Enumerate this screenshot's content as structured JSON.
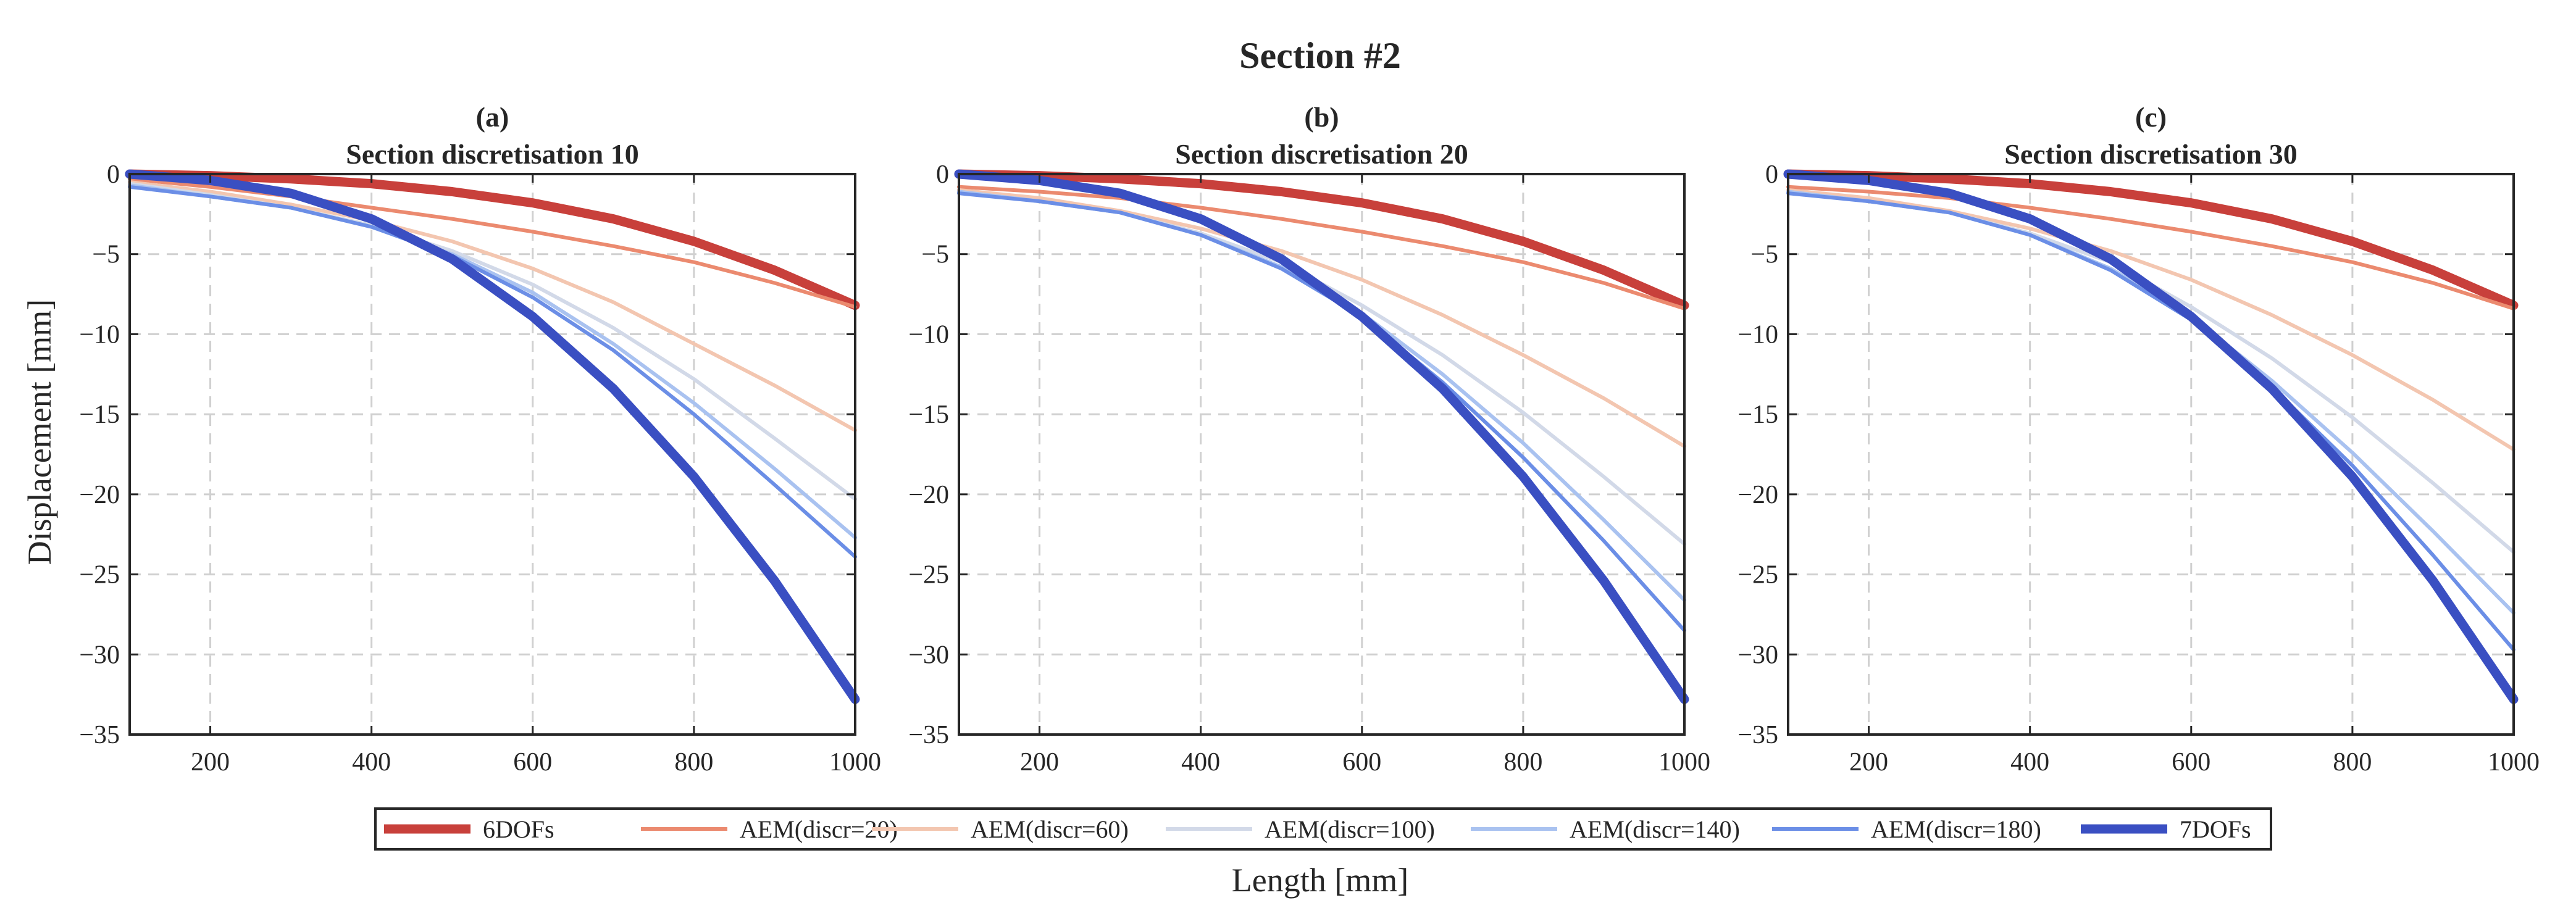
{
  "figure": {
    "suptitle": "Section #2",
    "ylabel": "Displacement [mm]",
    "xlabel": "Length [mm]"
  },
  "legend": [
    {
      "name": "6DOFs",
      "color": "#c8403b",
      "thick": true
    },
    {
      "name": "AEM(discr=20)",
      "color": "#eb8a6f",
      "thick": false
    },
    {
      "name": "AEM(discr=60)",
      "color": "#f3c6b0",
      "thick": false
    },
    {
      "name": "AEM(discr=100)",
      "color": "#d2d9e8",
      "thick": false
    },
    {
      "name": "AEM(discr=140)",
      "color": "#a9c2f0",
      "thick": false
    },
    {
      "name": "AEM(discr=180)",
      "color": "#6b8ee6",
      "thick": false
    },
    {
      "name": "7DOFs",
      "color": "#3a4fc2",
      "thick": true
    }
  ],
  "chart_data": [
    {
      "type": "line",
      "label": "(a)",
      "title": "Section discretisation 10",
      "xlim": [
        100,
        1000
      ],
      "ylim": [
        -35,
        0
      ],
      "xticks": [
        200,
        400,
        600,
        800,
        1000
      ],
      "yticks": [
        0,
        -5,
        -10,
        -15,
        -20,
        -25,
        -30,
        -35
      ],
      "grid": true,
      "x": [
        100,
        200,
        300,
        400,
        500,
        600,
        700,
        800,
        900,
        1000
      ],
      "series": [
        {
          "name": "6DOFs",
          "values": [
            0,
            -0.1,
            -0.3,
            -0.6,
            -1.1,
            -1.8,
            -2.8,
            -4.2,
            -6.0,
            -8.2
          ]
        },
        {
          "name": "AEM(discr=20)",
          "values": [
            -0.3,
            -0.8,
            -1.4,
            -2.1,
            -2.8,
            -3.6,
            -4.5,
            -5.5,
            -6.8,
            -8.3
          ]
        },
        {
          "name": "AEM(discr=60)",
          "values": [
            -0.5,
            -1.1,
            -1.9,
            -2.9,
            -4.2,
            -5.9,
            -8.0,
            -10.6,
            -13.2,
            -16.0
          ]
        },
        {
          "name": "AEM(discr=100)",
          "values": [
            -0.6,
            -1.3,
            -2.1,
            -3.2,
            -4.8,
            -6.9,
            -9.6,
            -12.8,
            -16.5,
            -20.3
          ]
        },
        {
          "name": "AEM(discr=140)",
          "values": [
            -0.7,
            -1.4,
            -2.1,
            -3.3,
            -5.0,
            -7.4,
            -10.6,
            -14.3,
            -18.4,
            -22.7
          ]
        },
        {
          "name": "AEM(discr=180)",
          "values": [
            -0.8,
            -1.4,
            -2.1,
            -3.3,
            -5.1,
            -7.7,
            -11.0,
            -15.0,
            -19.4,
            -23.9
          ]
        },
        {
          "name": "7DOFs",
          "values": [
            0,
            -0.4,
            -1.2,
            -2.8,
            -5.3,
            -8.9,
            -13.4,
            -18.9,
            -25.4,
            -32.8
          ]
        }
      ]
    },
    {
      "type": "line",
      "label": "(b)",
      "title": "Section discretisation 20",
      "xlim": [
        100,
        1000
      ],
      "ylim": [
        -35,
        0
      ],
      "xticks": [
        200,
        400,
        600,
        800,
        1000
      ],
      "yticks": [
        0,
        -5,
        -10,
        -15,
        -20,
        -25,
        -30,
        -35
      ],
      "grid": true,
      "x": [
        100,
        200,
        300,
        400,
        500,
        600,
        700,
        800,
        900,
        1000
      ],
      "series": [
        {
          "name": "6DOFs",
          "values": [
            0,
            -0.1,
            -0.3,
            -0.6,
            -1.1,
            -1.8,
            -2.8,
            -4.2,
            -6.0,
            -8.2
          ]
        },
        {
          "name": "AEM(discr=20)",
          "values": [
            -0.8,
            -1.1,
            -1.5,
            -2.1,
            -2.8,
            -3.6,
            -4.5,
            -5.5,
            -6.8,
            -8.4
          ]
        },
        {
          "name": "AEM(discr=60)",
          "values": [
            -1.0,
            -1.5,
            -2.3,
            -3.4,
            -4.8,
            -6.6,
            -8.8,
            -11.3,
            -14.0,
            -17.0
          ]
        },
        {
          "name": "AEM(discr=100)",
          "values": [
            -1.1,
            -1.7,
            -2.4,
            -3.7,
            -5.5,
            -8.2,
            -11.3,
            -14.9,
            -18.9,
            -23.1
          ]
        },
        {
          "name": "AEM(discr=140)",
          "values": [
            -1.1,
            -1.7,
            -2.4,
            -3.8,
            -5.8,
            -8.7,
            -12.5,
            -16.8,
            -21.6,
            -26.6
          ]
        },
        {
          "name": "AEM(discr=180)",
          "values": [
            -1.2,
            -1.7,
            -2.4,
            -3.8,
            -5.9,
            -8.9,
            -13.0,
            -17.7,
            -22.9,
            -28.5
          ]
        },
        {
          "name": "7DOFs",
          "values": [
            0,
            -0.4,
            -1.2,
            -2.8,
            -5.3,
            -8.9,
            -13.4,
            -18.9,
            -25.4,
            -32.8
          ]
        }
      ]
    },
    {
      "type": "line",
      "label": "(c)",
      "title": "Section discretisation 30",
      "xlim": [
        100,
        1000
      ],
      "ylim": [
        -35,
        0
      ],
      "xticks": [
        200,
        400,
        600,
        800,
        1000
      ],
      "yticks": [
        0,
        -5,
        -10,
        -15,
        -20,
        -25,
        -30,
        -35
      ],
      "grid": true,
      "x": [
        100,
        200,
        300,
        400,
        500,
        600,
        700,
        800,
        900,
        1000
      ],
      "series": [
        {
          "name": "6DOFs",
          "values": [
            0,
            -0.1,
            -0.3,
            -0.6,
            -1.1,
            -1.8,
            -2.8,
            -4.2,
            -6.0,
            -8.2
          ]
        },
        {
          "name": "AEM(discr=20)",
          "values": [
            -0.8,
            -1.1,
            -1.5,
            -2.1,
            -2.8,
            -3.6,
            -4.5,
            -5.5,
            -6.8,
            -8.4
          ]
        },
        {
          "name": "AEM(discr=60)",
          "values": [
            -1.0,
            -1.5,
            -2.3,
            -3.4,
            -4.8,
            -6.6,
            -8.8,
            -11.3,
            -14.1,
            -17.2
          ]
        },
        {
          "name": "AEM(discr=100)",
          "values": [
            -1.1,
            -1.7,
            -2.4,
            -3.7,
            -5.5,
            -8.3,
            -11.5,
            -15.2,
            -19.3,
            -23.6
          ]
        },
        {
          "name": "AEM(discr=140)",
          "values": [
            -1.1,
            -1.7,
            -2.4,
            -3.8,
            -5.9,
            -8.9,
            -12.9,
            -17.4,
            -22.3,
            -27.4
          ]
        },
        {
          "name": "AEM(discr=180)",
          "values": [
            -1.2,
            -1.7,
            -2.4,
            -3.8,
            -6.0,
            -9.1,
            -13.3,
            -18.2,
            -23.8,
            -29.7
          ]
        },
        {
          "name": "7DOFs",
          "values": [
            0,
            -0.4,
            -1.2,
            -2.8,
            -5.3,
            -8.9,
            -13.4,
            -18.9,
            -25.4,
            -32.8
          ]
        }
      ]
    }
  ]
}
